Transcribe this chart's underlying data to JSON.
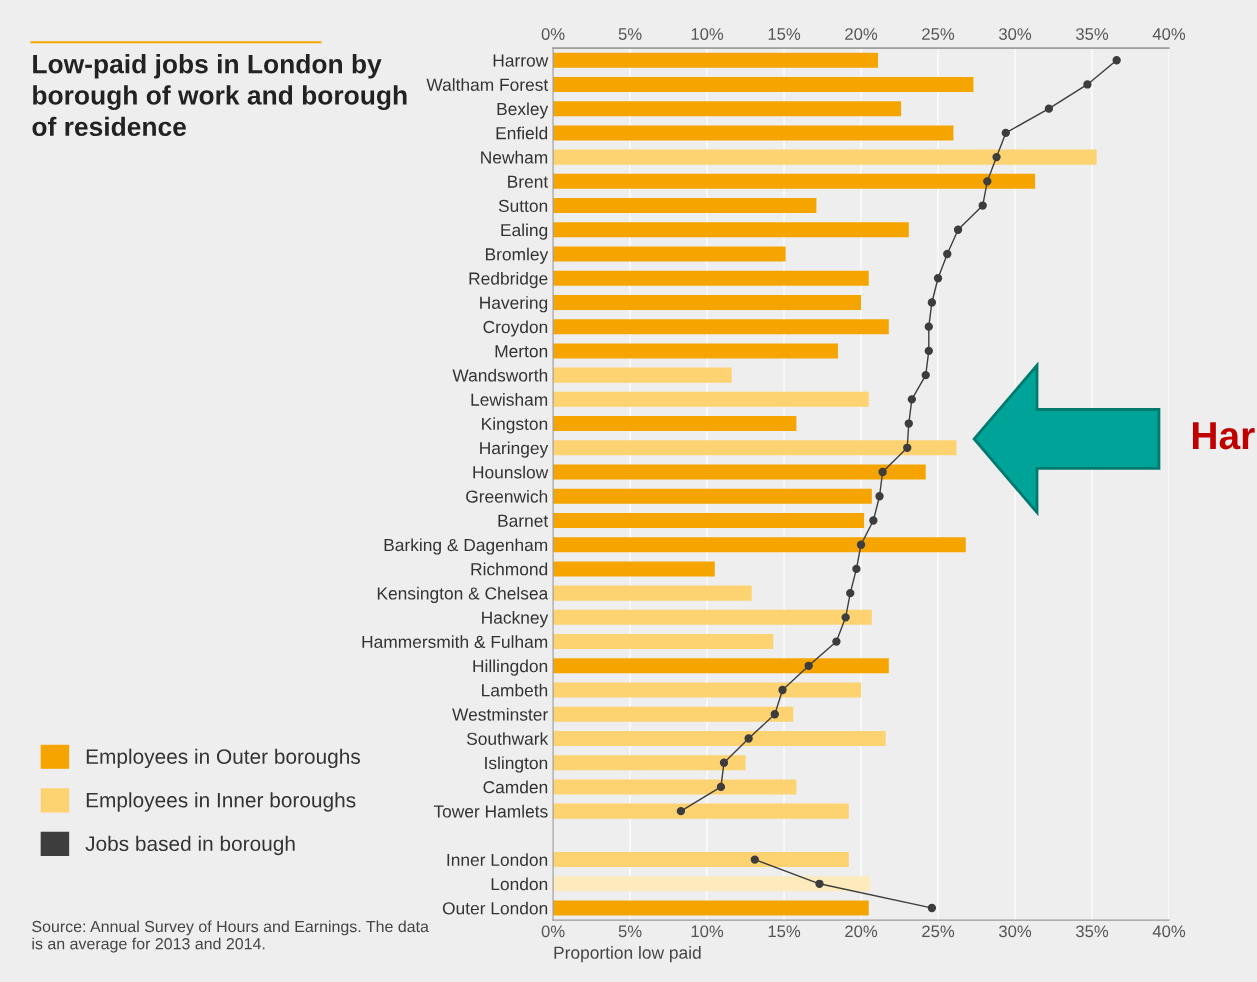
{
  "chart_data": {
    "type": "bar",
    "orientation": "horizontal",
    "title": "Low-paid jobs in London by borough of work and borough of residence",
    "xlabel": "Proportion low paid",
    "categories": [
      "Harrow",
      "Waltham Forest",
      "Bexley",
      "Enfield",
      "Newham",
      "Brent",
      "Sutton",
      "Ealing",
      "Bromley",
      "Redbridge",
      "Havering",
      "Croydon",
      "Merton",
      "Wandsworth",
      "Lewisham",
      "Kingston",
      "Haringey",
      "Hounslow",
      "Greenwich",
      "Barnet",
      "Barking & Dagenham",
      "Richmond",
      "Kensington & Chelsea",
      "Hackney",
      "Hammersmith & Fulham",
      "Hillingdon",
      "Lambeth",
      "Westminster",
      "Southwark",
      "Islington",
      "Camden",
      "Tower Hamlets",
      null,
      "Inner London",
      "London",
      "Outer London"
    ],
    "series": [
      {
        "name": "Employees in Outer boroughs",
        "color": "#f5a400",
        "values": [
          21.1,
          27.3,
          22.6,
          26.0,
          null,
          31.3,
          17.1,
          23.1,
          15.1,
          20.5,
          20.0,
          21.8,
          18.5,
          null,
          null,
          15.8,
          null,
          24.2,
          20.7,
          20.2,
          26.8,
          10.5,
          null,
          null,
          null,
          21.8,
          null,
          null,
          null,
          null,
          null,
          null,
          null,
          null,
          null,
          20.5
        ]
      },
      {
        "name": "Employees in Inner boroughs",
        "color": "#fdd270",
        "values": [
          null,
          null,
          null,
          null,
          35.3,
          null,
          null,
          null,
          null,
          null,
          null,
          null,
          null,
          11.6,
          20.5,
          null,
          26.2,
          null,
          null,
          null,
          null,
          null,
          12.9,
          20.7,
          14.3,
          null,
          20.0,
          15.6,
          21.6,
          12.5,
          15.8,
          19.2,
          null,
          19.2,
          null,
          null
        ]
      },
      {
        "color": "#fdebbd",
        "values": [
          null,
          null,
          null,
          null,
          null,
          null,
          null,
          null,
          null,
          null,
          null,
          null,
          null,
          null,
          null,
          null,
          null,
          null,
          null,
          null,
          null,
          null,
          null,
          null,
          null,
          null,
          null,
          null,
          null,
          null,
          null,
          null,
          null,
          null,
          20.6,
          null
        ]
      },
      {
        "name": "Jobs based in borough",
        "type": "line",
        "marker": "circle",
        "color": "#3d3d3d",
        "values": [
          36.6,
          34.7,
          32.2,
          29.4,
          28.8,
          28.2,
          27.9,
          26.3,
          25.6,
          25.0,
          24.6,
          24.4,
          24.4,
          24.2,
          23.3,
          23.1,
          23.0,
          21.4,
          21.2,
          20.8,
          20.0,
          19.7,
          19.3,
          19.0,
          18.4,
          16.6,
          14.9,
          14.4,
          12.7,
          11.1,
          10.9,
          8.3,
          null,
          13.1,
          17.3,
          24.6
        ]
      }
    ],
    "xlim": [
      0,
      40
    ],
    "xticks": [
      {
        "value": 0,
        "label": "0%"
      },
      {
        "value": 5,
        "label": "5%"
      },
      {
        "value": 10,
        "label": "10%"
      },
      {
        "value": 15,
        "label": "15%"
      },
      {
        "value": 20,
        "label": "20%"
      },
      {
        "value": 25,
        "label": "25%"
      },
      {
        "value": 30,
        "label": "30%"
      },
      {
        "value": 35,
        "label": "35%"
      },
      {
        "value": 40,
        "label": "40%"
      }
    ],
    "x2lim": [
      0,
      40
    ],
    "x2ticks": [
      {
        "value": 0,
        "label": "0%"
      },
      {
        "value": 5,
        "label": "5%"
      },
      {
        "value": 10,
        "label": "10%"
      },
      {
        "value": 15,
        "label": "15%"
      },
      {
        "value": 20,
        "label": "20%"
      },
      {
        "value": 25,
        "label": "25%"
      },
      {
        "value": 30,
        "label": "30%"
      },
      {
        "value": 35,
        "label": "35%"
      },
      {
        "value": 40,
        "label": "40%"
      }
    ],
    "grid": "x",
    "legend": "bottom left",
    "annotations": [
      "Source: Annual Survey of Hours and Earnings. The data is an average for 2013 and 2014.",
      "Har"
    ]
  }
}
